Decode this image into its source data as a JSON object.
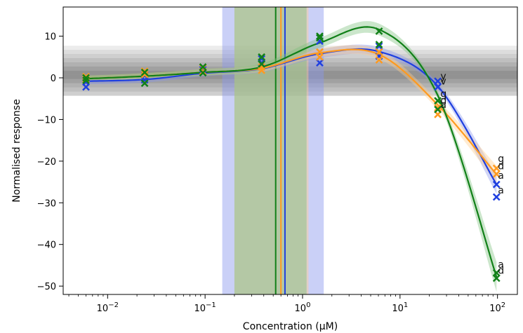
{
  "chart_data": {
    "type": "line",
    "title": "",
    "xlabel": "Concentration (μM)",
    "ylabel": "Normalised response",
    "xscale": "log",
    "xlim": [
      0.0035,
      160
    ],
    "ylim": [
      -52,
      17
    ],
    "x_ticks": [
      {
        "value": 0.01,
        "base": "10",
        "exp": "−2"
      },
      {
        "value": 0.1,
        "base": "10",
        "exp": "−1"
      },
      {
        "value": 1,
        "base": "10",
        "exp": "0"
      },
      {
        "value": 10,
        "base": "10",
        "exp": "1"
      },
      {
        "value": 100,
        "base": "10",
        "exp": "2"
      }
    ],
    "y_ticks": [
      {
        "value": 10,
        "label": "10"
      },
      {
        "value": 0,
        "label": "0"
      },
      {
        "value": -10,
        "label": "−10"
      },
      {
        "value": -20,
        "label": "−20"
      },
      {
        "value": -30,
        "label": "−30"
      },
      {
        "value": -40,
        "label": "−40"
      },
      {
        "value": -50,
        "label": "−50"
      }
    ],
    "grid": false,
    "series": [
      {
        "color": "#1f3fe0",
        "band_color": "#8a96ee",
        "x": [
          0.006,
          0.024,
          0.095,
          0.38,
          1.5,
          6.1,
          24.4,
          97.7
        ],
        "y": [
          -0.8,
          -0.4,
          1.1,
          2.2,
          5.8,
          6.3,
          -2.0,
          -25.6
        ],
        "ec50": 0.66,
        "ec50_band": [
          0.15,
          1.65
        ],
        "points": [
          {
            "x": 0.006,
            "y": -2.2
          },
          {
            "x": 0.006,
            "y": -1.0
          },
          {
            "x": 0.024,
            "y": -0.5
          },
          {
            "x": 0.024,
            "y": 0.6
          },
          {
            "x": 0.095,
            "y": 1.3
          },
          {
            "x": 0.095,
            "y": 2.0
          },
          {
            "x": 0.38,
            "y": 3.6
          },
          {
            "x": 0.38,
            "y": 4.6
          },
          {
            "x": 1.5,
            "y": 3.6
          },
          {
            "x": 1.5,
            "y": 8.8
          },
          {
            "x": 6.1,
            "y": 5.2
          },
          {
            "x": 6.1,
            "y": 7.6
          },
          {
            "x": 24.4,
            "y": -0.8
          },
          {
            "x": 24.4,
            "y": -2.2
          },
          {
            "x": 97.7,
            "y": -25.6
          },
          {
            "x": 97.7,
            "y": -28.6
          }
        ]
      },
      {
        "color": "#ff9a1f",
        "band_color": "#ffcc8c",
        "x": [
          0.006,
          0.024,
          0.095,
          0.38,
          1.5,
          6.1,
          24.4,
          97.7
        ],
        "y": [
          -0.2,
          0.4,
          1.3,
          2.3,
          6.0,
          5.6,
          -6.5,
          -23.2
        ],
        "ec50": 0.6,
        "ec50_band": [
          0.2,
          1.15
        ],
        "points": [
          {
            "x": 0.006,
            "y": -0.3
          },
          {
            "x": 0.006,
            "y": 0.3
          },
          {
            "x": 0.024,
            "y": 0.8
          },
          {
            "x": 0.024,
            "y": 1.6
          },
          {
            "x": 0.095,
            "y": 1.5
          },
          {
            "x": 0.095,
            "y": 2.4
          },
          {
            "x": 0.38,
            "y": 1.8
          },
          {
            "x": 0.38,
            "y": 2.6
          },
          {
            "x": 1.5,
            "y": 5.0
          },
          {
            "x": 1.5,
            "y": 6.2
          },
          {
            "x": 6.1,
            "y": 4.3
          },
          {
            "x": 6.1,
            "y": 6.2
          },
          {
            "x": 24.4,
            "y": -8.8
          },
          {
            "x": 24.4,
            "y": -7.2
          },
          {
            "x": 97.7,
            "y": -21.7
          },
          {
            "x": 97.7,
            "y": -23.1
          }
        ]
      },
      {
        "color": "#118018",
        "band_color": "#7cc07c",
        "x": [
          0.006,
          0.024,
          0.095,
          0.38,
          1.5,
          6.1,
          24.4,
          97.7
        ],
        "y": [
          -0.2,
          0.4,
          1.3,
          2.6,
          8.4,
          11.6,
          -4.2,
          -47.8
        ],
        "ec50": 0.53,
        "ec50_band": [
          0.2,
          1.1
        ],
        "points": [
          {
            "x": 0.006,
            "y": 0.0
          },
          {
            "x": 0.006,
            "y": -0.6
          },
          {
            "x": 0.024,
            "y": 1.3
          },
          {
            "x": 0.024,
            "y": -1.3
          },
          {
            "x": 0.095,
            "y": 2.6
          },
          {
            "x": 0.095,
            "y": 1.2
          },
          {
            "x": 0.38,
            "y": 5.0
          },
          {
            "x": 0.38,
            "y": 3.3
          },
          {
            "x": 1.5,
            "y": 9.6
          },
          {
            "x": 1.5,
            "y": 10.0
          },
          {
            "x": 6.1,
            "y": 11.2
          },
          {
            "x": 6.1,
            "y": 8.0
          },
          {
            "x": 24.4,
            "y": -5.5
          },
          {
            "x": 24.4,
            "y": -7.6
          },
          {
            "x": 97.7,
            "y": -46.8
          },
          {
            "x": 97.7,
            "y": -48.1
          }
        ]
      }
    ],
    "point_labels": [
      {
        "text": "y",
        "x": 26,
        "y": -0.4
      },
      {
        "text": "v",
        "x": 26,
        "y": -1.6
      },
      {
        "text": "g",
        "x": 26,
        "y": -4.6
      },
      {
        "text": "d",
        "x": 26,
        "y": -6.2
      },
      {
        "text": "a",
        "x": 26,
        "y": -7.2
      },
      {
        "text": "g",
        "x": 101,
        "y": -20.2
      },
      {
        "text": "d",
        "x": 101,
        "y": -22.0
      },
      {
        "text": "a",
        "x": 101,
        "y": -24.2
      },
      {
        "text": "a",
        "x": 101,
        "y": -27.8
      },
      {
        "text": "a",
        "x": 101,
        "y": -45.6
      },
      {
        "text": "d",
        "x": 101,
        "y": -47.0
      }
    ],
    "background_band_levels": [
      7.2,
      6.2,
      5.2,
      4.2,
      3.2,
      2.2,
      1.2,
      0.2,
      -0.8,
      -1.8,
      -2.8,
      -3.8
    ]
  }
}
